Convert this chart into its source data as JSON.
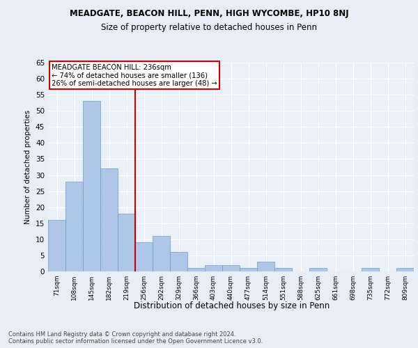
{
  "title1": "MEADGATE, BEACON HILL, PENN, HIGH WYCOMBE, HP10 8NJ",
  "title2": "Size of property relative to detached houses in Penn",
  "xlabel": "Distribution of detached houses by size in Penn",
  "ylabel": "Number of detached properties",
  "categories": [
    "71sqm",
    "108sqm",
    "145sqm",
    "182sqm",
    "219sqm",
    "256sqm",
    "292sqm",
    "329sqm",
    "366sqm",
    "403sqm",
    "440sqm",
    "477sqm",
    "514sqm",
    "551sqm",
    "588sqm",
    "625sqm",
    "661sqm",
    "698sqm",
    "735sqm",
    "772sqm",
    "809sqm"
  ],
  "values": [
    16,
    28,
    53,
    32,
    18,
    9,
    11,
    6,
    1,
    2,
    2,
    1,
    3,
    1,
    0,
    1,
    0,
    0,
    1,
    0,
    1
  ],
  "bar_color": "#aec6e8",
  "bar_edge_color": "#6b9ec8",
  "vline_color": "#cc0000",
  "annotation_text": "MEADGATE BEACON HILL: 236sqm\n← 74% of detached houses are smaller (136)\n26% of semi-detached houses are larger (48) →",
  "annotation_box_color": "#cc0000",
  "ylim": [
    0,
    65
  ],
  "yticks": [
    0,
    5,
    10,
    15,
    20,
    25,
    30,
    35,
    40,
    45,
    50,
    55,
    60,
    65
  ],
  "footer": "Contains HM Land Registry data © Crown copyright and database right 2024.\nContains public sector information licensed under the Open Government Licence v3.0.",
  "bg_color": "#e8eef5",
  "plot_bg_color": "#eaf0f8"
}
